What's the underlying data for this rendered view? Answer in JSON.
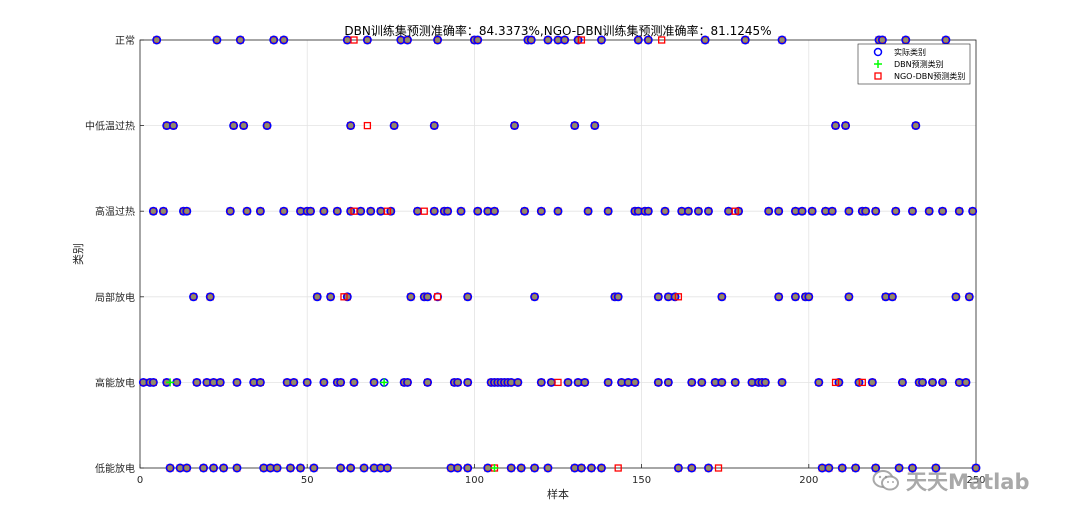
{
  "chart_data": {
    "type": "scatter",
    "title": "DBN训练集预测准确率：84.3373%,NGO-DBN训练集预测准确率：81.1245%",
    "xlabel": "样本",
    "ylabel": "类别",
    "xlim": [
      0,
      250
    ],
    "ylim": [
      1,
      6
    ],
    "xticks": [
      "0",
      "50",
      "100",
      "150",
      "200",
      "250"
    ],
    "yticks": [
      "低能放电",
      "高能放电",
      "局部放电",
      "高温过热",
      "中低温过热",
      "正常"
    ],
    "grid": true,
    "legend_position": "top-right",
    "legend": [
      "实际类别",
      "DBN预测类别",
      "NGO-DBN预测类别"
    ],
    "colors": {
      "actual": "#0000ff",
      "dbn": "#00ff00",
      "ngo": "#ff0000",
      "fill": "#8c8c6e"
    },
    "series": [
      {
        "name": "实际类别",
        "marker": "circle",
        "points": [
          [
            5,
            6
          ],
          [
            23,
            6
          ],
          [
            30,
            6
          ],
          [
            40,
            6
          ],
          [
            43,
            6
          ],
          [
            62,
            6
          ],
          [
            68,
            6
          ],
          [
            78,
            6
          ],
          [
            80,
            6
          ],
          [
            89,
            6
          ],
          [
            100,
            6
          ],
          [
            101,
            6
          ],
          [
            116,
            6
          ],
          [
            117,
            6
          ],
          [
            122,
            6
          ],
          [
            125,
            6
          ],
          [
            127,
            6
          ],
          [
            131,
            6
          ],
          [
            138,
            6
          ],
          [
            149,
            6
          ],
          [
            152,
            6
          ],
          [
            169,
            6
          ],
          [
            181,
            6
          ],
          [
            192,
            6
          ],
          [
            221,
            6
          ],
          [
            222,
            6
          ],
          [
            229,
            6
          ],
          [
            241,
            6
          ],
          [
            8,
            5
          ],
          [
            10,
            5
          ],
          [
            28,
            5
          ],
          [
            31,
            5
          ],
          [
            38,
            5
          ],
          [
            63,
            5
          ],
          [
            76,
            5
          ],
          [
            88,
            5
          ],
          [
            112,
            5
          ],
          [
            130,
            5
          ],
          [
            136,
            5
          ],
          [
            208,
            5
          ],
          [
            211,
            5
          ],
          [
            232,
            5
          ],
          [
            4,
            4
          ],
          [
            7,
            4
          ],
          [
            13,
            4
          ],
          [
            14,
            4
          ],
          [
            27,
            4
          ],
          [
            32,
            4
          ],
          [
            36,
            4
          ],
          [
            43,
            4
          ],
          [
            48,
            4
          ],
          [
            50,
            4
          ],
          [
            51,
            4
          ],
          [
            55,
            4
          ],
          [
            59,
            4
          ],
          [
            63,
            4
          ],
          [
            66,
            4
          ],
          [
            69,
            4
          ],
          [
            72,
            4
          ],
          [
            75,
            4
          ],
          [
            83,
            4
          ],
          [
            88,
            4
          ],
          [
            91,
            4
          ],
          [
            92,
            4
          ],
          [
            96,
            4
          ],
          [
            101,
            4
          ],
          [
            104,
            4
          ],
          [
            106,
            4
          ],
          [
            115,
            4
          ],
          [
            120,
            4
          ],
          [
            125,
            4
          ],
          [
            134,
            4
          ],
          [
            140,
            4
          ],
          [
            148,
            4
          ],
          [
            149,
            4
          ],
          [
            151,
            4
          ],
          [
            152,
            4
          ],
          [
            157,
            4
          ],
          [
            162,
            4
          ],
          [
            164,
            4
          ],
          [
            167,
            4
          ],
          [
            170,
            4
          ],
          [
            176,
            4
          ],
          [
            179,
            4
          ],
          [
            188,
            4
          ],
          [
            191,
            4
          ],
          [
            196,
            4
          ],
          [
            198,
            4
          ],
          [
            201,
            4
          ],
          [
            205,
            4
          ],
          [
            207,
            4
          ],
          [
            212,
            4
          ],
          [
            216,
            4
          ],
          [
            217,
            4
          ],
          [
            220,
            4
          ],
          [
            226,
            4
          ],
          [
            231,
            4
          ],
          [
            236,
            4
          ],
          [
            240,
            4
          ],
          [
            245,
            4
          ],
          [
            249,
            4
          ],
          [
            16,
            3
          ],
          [
            21,
            3
          ],
          [
            53,
            3
          ],
          [
            57,
            3
          ],
          [
            62,
            3
          ],
          [
            81,
            3
          ],
          [
            85,
            3
          ],
          [
            86,
            3
          ],
          [
            89,
            3
          ],
          [
            98,
            3
          ],
          [
            118,
            3
          ],
          [
            142,
            3
          ],
          [
            143,
            3
          ],
          [
            155,
            3
          ],
          [
            158,
            3
          ],
          [
            160,
            3
          ],
          [
            174,
            3
          ],
          [
            191,
            3
          ],
          [
            196,
            3
          ],
          [
            199,
            3
          ],
          [
            200,
            3
          ],
          [
            212,
            3
          ],
          [
            223,
            3
          ],
          [
            225,
            3
          ],
          [
            244,
            3
          ],
          [
            248,
            3
          ],
          [
            1,
            2
          ],
          [
            3,
            2
          ],
          [
            4,
            2
          ],
          [
            8,
            2
          ],
          [
            11,
            2
          ],
          [
            17,
            2
          ],
          [
            20,
            2
          ],
          [
            22,
            2
          ],
          [
            24,
            2
          ],
          [
            29,
            2
          ],
          [
            34,
            2
          ],
          [
            36,
            2
          ],
          [
            44,
            2
          ],
          [
            46,
            2
          ],
          [
            50,
            2
          ],
          [
            55,
            2
          ],
          [
            59,
            2
          ],
          [
            60,
            2
          ],
          [
            64,
            2
          ],
          [
            70,
            2
          ],
          [
            73,
            2
          ],
          [
            79,
            2
          ],
          [
            80,
            2
          ],
          [
            86,
            2
          ],
          [
            94,
            2
          ],
          [
            95,
            2
          ],
          [
            98,
            2
          ],
          [
            105,
            2
          ],
          [
            106,
            2
          ],
          [
            107,
            2
          ],
          [
            108,
            2
          ],
          [
            109,
            2
          ],
          [
            110,
            2
          ],
          [
            111,
            2
          ],
          [
            113,
            2
          ],
          [
            120,
            2
          ],
          [
            123,
            2
          ],
          [
            128,
            2
          ],
          [
            131,
            2
          ],
          [
            133,
            2
          ],
          [
            140,
            2
          ],
          [
            144,
            2
          ],
          [
            146,
            2
          ],
          [
            148,
            2
          ],
          [
            155,
            2
          ],
          [
            158,
            2
          ],
          [
            165,
            2
          ],
          [
            168,
            2
          ],
          [
            172,
            2
          ],
          [
            174,
            2
          ],
          [
            178,
            2
          ],
          [
            183,
            2
          ],
          [
            185,
            2
          ],
          [
            186,
            2
          ],
          [
            187,
            2
          ],
          [
            192,
            2
          ],
          [
            203,
            2
          ],
          [
            209,
            2
          ],
          [
            215,
            2
          ],
          [
            219,
            2
          ],
          [
            228,
            2
          ],
          [
            233,
            2
          ],
          [
            234,
            2
          ],
          [
            237,
            2
          ],
          [
            240,
            2
          ],
          [
            245,
            2
          ],
          [
            247,
            2
          ],
          [
            9,
            1
          ],
          [
            12,
            1
          ],
          [
            14,
            1
          ],
          [
            19,
            1
          ],
          [
            22,
            1
          ],
          [
            25,
            1
          ],
          [
            29,
            1
          ],
          [
            37,
            1
          ],
          [
            39,
            1
          ],
          [
            41,
            1
          ],
          [
            45,
            1
          ],
          [
            48,
            1
          ],
          [
            52,
            1
          ],
          [
            60,
            1
          ],
          [
            63,
            1
          ],
          [
            67,
            1
          ],
          [
            70,
            1
          ],
          [
            72,
            1
          ],
          [
            74,
            1
          ],
          [
            93,
            1
          ],
          [
            95,
            1
          ],
          [
            98,
            1
          ],
          [
            104,
            1
          ],
          [
            111,
            1
          ],
          [
            114,
            1
          ],
          [
            118,
            1
          ],
          [
            122,
            1
          ],
          [
            130,
            1
          ],
          [
            132,
            1
          ],
          [
            135,
            1
          ],
          [
            138,
            1
          ],
          [
            161,
            1
          ],
          [
            165,
            1
          ],
          [
            170,
            1
          ],
          [
            204,
            1
          ],
          [
            206,
            1
          ],
          [
            210,
            1
          ],
          [
            214,
            1
          ],
          [
            220,
            1
          ],
          [
            227,
            1
          ],
          [
            231,
            1
          ],
          [
            238,
            1
          ],
          [
            250,
            1
          ]
        ]
      },
      {
        "name": "DBN预测类别",
        "marker": "plus",
        "points": [
          [
            9,
            2
          ],
          [
            73,
            2
          ],
          [
            106,
            1
          ]
        ]
      },
      {
        "name": "NGO-DBN预测类别",
        "marker": "square",
        "points": [
          [
            64,
            6
          ],
          [
            132,
            6
          ],
          [
            156,
            6
          ],
          [
            68,
            5
          ],
          [
            74,
            4
          ],
          [
            64,
            4
          ],
          [
            85,
            4
          ],
          [
            178,
            4
          ],
          [
            61,
            3
          ],
          [
            89,
            3
          ],
          [
            161,
            3
          ],
          [
            125,
            2
          ],
          [
            208,
            2
          ],
          [
            216,
            2
          ],
          [
            106,
            1
          ],
          [
            143,
            1
          ],
          [
            173,
            1
          ]
        ]
      }
    ]
  },
  "watermark": {
    "text": "天天Matlab",
    "icon": "wechat-logo-icon"
  }
}
